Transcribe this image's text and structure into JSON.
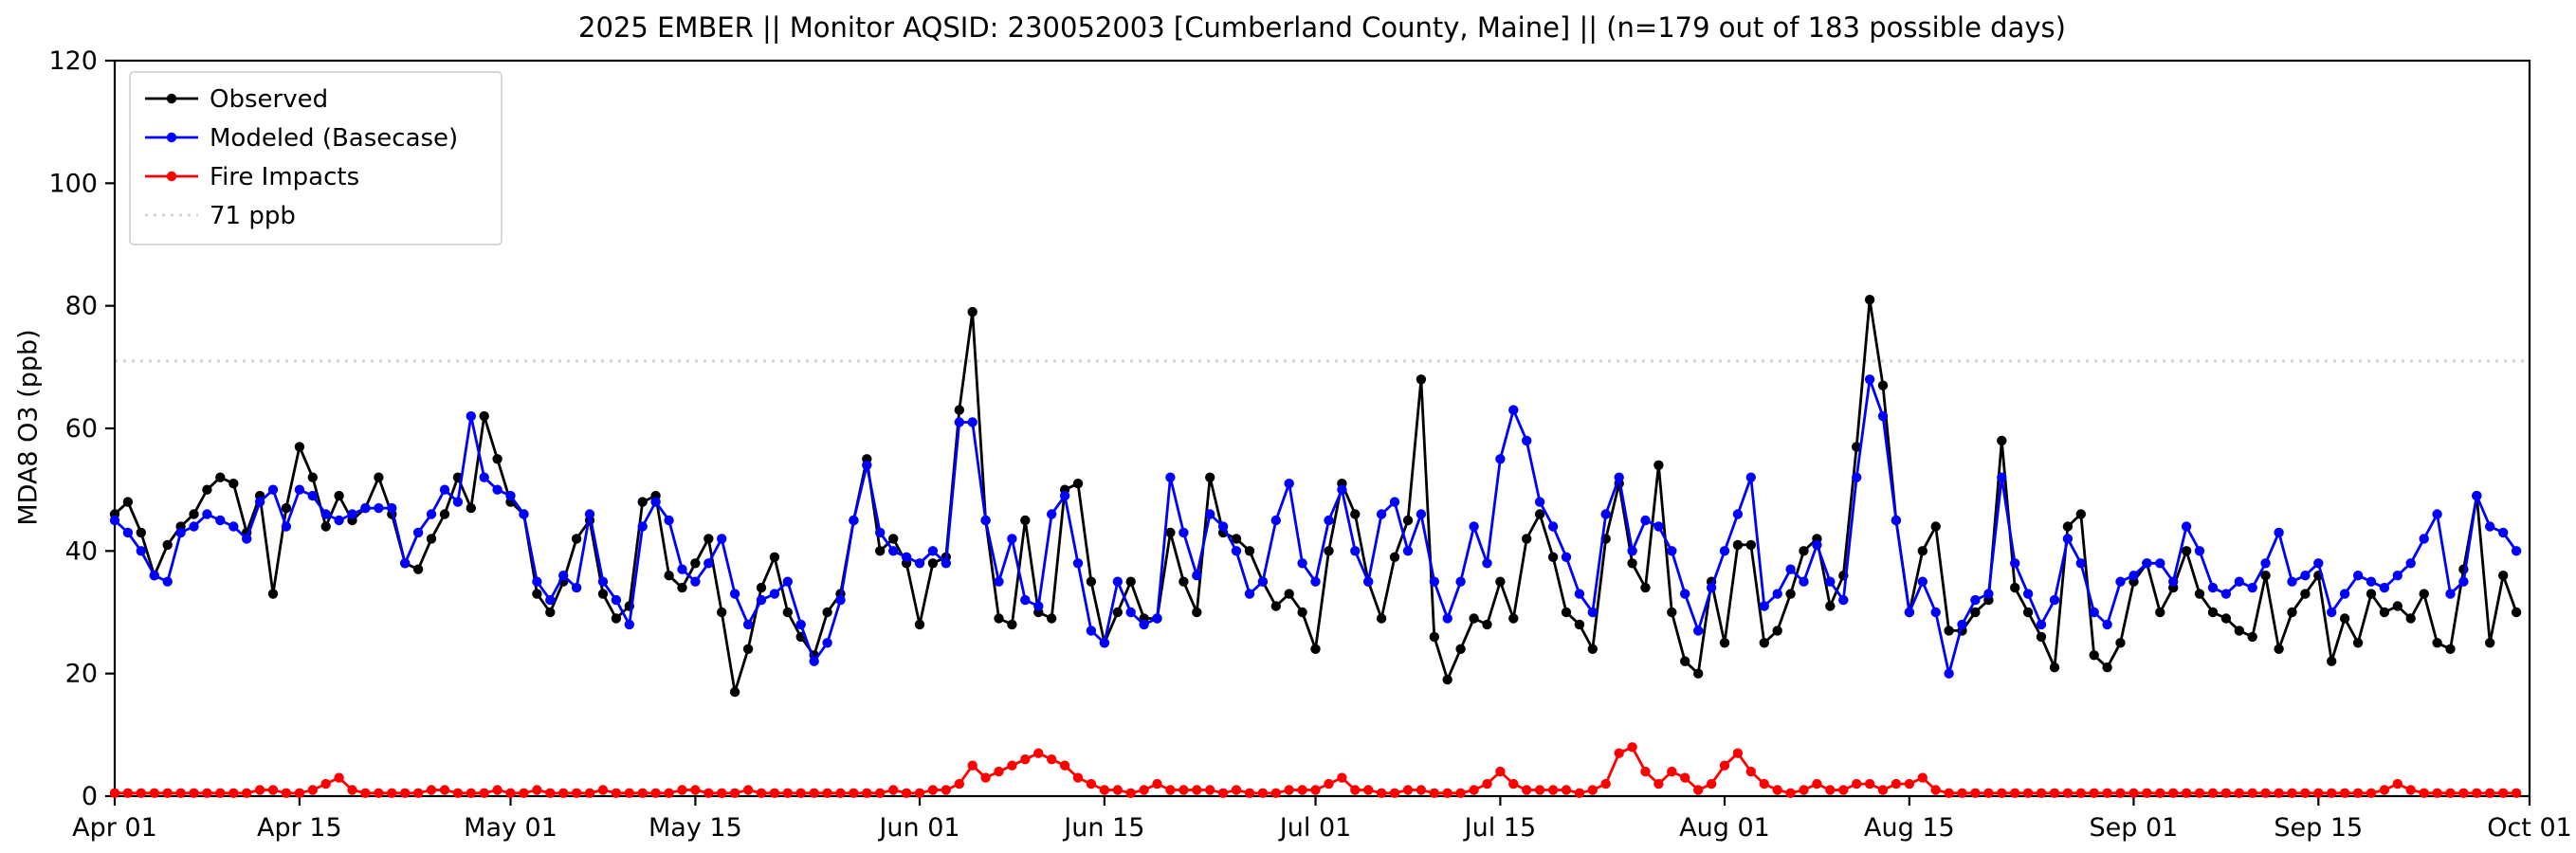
{
  "chart_data": {
    "type": "line",
    "title": "2025 EMBER || Monitor AQSID: 230052003 [Cumberland County, Maine] || (n=179 out of 183 possible days)",
    "xlabel": "",
    "ylabel": "MDA8 O3 (ppb)",
    "ylim": [
      0,
      120
    ],
    "yticks": [
      0,
      20,
      40,
      60,
      80,
      100,
      120
    ],
    "x_range": [
      0,
      183
    ],
    "x_tick_positions": [
      0,
      14,
      30,
      44,
      61,
      75,
      91,
      105,
      122,
      136,
      153,
      167,
      183
    ],
    "x_tick_labels": [
      "Apr 01",
      "Apr 15",
      "May 01",
      "May 15",
      "Jun 01",
      "Jun 15",
      "Jul 01",
      "Jul 15",
      "Aug 01",
      "Aug 15",
      "Sep 01",
      "Sep 15",
      "Oct 01"
    ],
    "grid": false,
    "legend_position": "upper-left",
    "threshold": {
      "label": "71 ppb",
      "value": 71,
      "color": "#d3d3d3",
      "style": "dotted"
    },
    "legend_items": [
      {
        "label": "Observed",
        "color": "#000000",
        "style": "solid",
        "marker": true
      },
      {
        "label": "Modeled (Basecase)",
        "color": "#0000ff",
        "style": "solid",
        "marker": true
      },
      {
        "label": "Fire Impacts",
        "color": "#ff0000",
        "style": "solid",
        "marker": true
      },
      {
        "label": "71 ppb",
        "color": "#d3d3d3",
        "style": "dotted",
        "marker": false
      }
    ],
    "series": [
      {
        "name": "Observed",
        "color": "#000000",
        "values": [
          46,
          48,
          43,
          36,
          41,
          44,
          46,
          50,
          52,
          51,
          43,
          49,
          33,
          47,
          57,
          52,
          44,
          49,
          45,
          47,
          52,
          46,
          38,
          37,
          42,
          46,
          52,
          47,
          62,
          55,
          48,
          46,
          33,
          30,
          35,
          42,
          45,
          33,
          29,
          31,
          48,
          49,
          36,
          34,
          38,
          42,
          30,
          17,
          24,
          34,
          39,
          30,
          26,
          23,
          30,
          33,
          45,
          55,
          40,
          42,
          38,
          28,
          38,
          39,
          63,
          79,
          45,
          29,
          28,
          45,
          30,
          29,
          50,
          51,
          35,
          25,
          30,
          35,
          29,
          29,
          43,
          35,
          30,
          52,
          43,
          42,
          40,
          35,
          31,
          33,
          30,
          24,
          40,
          51,
          46,
          35,
          29,
          39,
          45,
          68,
          26,
          19,
          24,
          29,
          28,
          35,
          29,
          42,
          46,
          39,
          30,
          28,
          24,
          42,
          51,
          38,
          34,
          54,
          30,
          22,
          20,
          35,
          25,
          41,
          41,
          25,
          27,
          33,
          40,
          42,
          31,
          36,
          57,
          81,
          67,
          45,
          30,
          40,
          44,
          27,
          27,
          30,
          32,
          58,
          34,
          30,
          26,
          21,
          44,
          46,
          23,
          21,
          25,
          35,
          38,
          30,
          34,
          40,
          33,
          30,
          29,
          27,
          26,
          36,
          24,
          30,
          33,
          36,
          22,
          29,
          25,
          33,
          30,
          31,
          29,
          33,
          25,
          24,
          37,
          49,
          25,
          36,
          30
        ]
      },
      {
        "name": "Modeled (Basecase)",
        "color": "#0000ff",
        "values": [
          45,
          43,
          40,
          36,
          35,
          43,
          44,
          46,
          45,
          44,
          42,
          48,
          50,
          44,
          50,
          49,
          46,
          45,
          46,
          47,
          47,
          47,
          38,
          43,
          46,
          50,
          48,
          62,
          52,
          50,
          49,
          46,
          35,
          32,
          36,
          34,
          46,
          35,
          32,
          28,
          44,
          48,
          45,
          37,
          35,
          38,
          42,
          33,
          28,
          32,
          33,
          35,
          28,
          22,
          25,
          32,
          45,
          54,
          43,
          40,
          39,
          38,
          40,
          38,
          61,
          61,
          45,
          35,
          42,
          32,
          31,
          46,
          49,
          38,
          27,
          25,
          35,
          30,
          28,
          29,
          52,
          43,
          36,
          46,
          44,
          40,
          33,
          35,
          45,
          51,
          38,
          35,
          45,
          50,
          40,
          35,
          46,
          48,
          40,
          46,
          35,
          29,
          35,
          44,
          38,
          55,
          63,
          58,
          48,
          44,
          39,
          33,
          30,
          46,
          52,
          40,
          45,
          44,
          40,
          33,
          27,
          34,
          40,
          46,
          52,
          31,
          33,
          37,
          35,
          41,
          35,
          32,
          52,
          68,
          62,
          45,
          30,
          35,
          30,
          20,
          28,
          32,
          33,
          52,
          38,
          33,
          28,
          32,
          42,
          38,
          30,
          28,
          35,
          36,
          38,
          38,
          35,
          44,
          40,
          34,
          33,
          35,
          34,
          38,
          43,
          35,
          36,
          38,
          30,
          33,
          36,
          35,
          34,
          36,
          38,
          42,
          46,
          33,
          35,
          49,
          44,
          43,
          40
        ]
      },
      {
        "name": "Fire Impacts",
        "color": "#ff0000",
        "values": [
          0.5,
          0.5,
          0.5,
          0.5,
          0.5,
          0.5,
          0.5,
          0.5,
          0.5,
          0.5,
          0.5,
          1,
          1,
          0.5,
          0.5,
          1,
          2,
          3,
          1,
          0.5,
          0.5,
          0.5,
          0.5,
          0.5,
          1,
          1,
          0.5,
          0.5,
          0.5,
          1,
          0.5,
          0.5,
          1,
          0.5,
          0.5,
          0.5,
          0.5,
          1,
          0.5,
          0.5,
          0.5,
          0.5,
          0.5,
          1,
          1,
          0.5,
          0.5,
          0.5,
          1,
          0.5,
          0.5,
          0.5,
          0.5,
          0.5,
          0.5,
          0.5,
          0.5,
          0.5,
          0.5,
          1,
          0.5,
          0.5,
          1,
          1,
          2,
          5,
          3,
          4,
          5,
          6,
          7,
          6,
          5,
          3,
          2,
          1,
          1,
          0.5,
          1,
          2,
          1,
          1,
          1,
          1,
          0.5,
          1,
          0.5,
          0.5,
          0.5,
          1,
          1,
          1,
          2,
          3,
          1,
          1,
          0.5,
          0.5,
          1,
          1,
          0.5,
          0.5,
          0.5,
          1,
          2,
          4,
          2,
          1,
          1,
          1,
          1,
          0.5,
          1,
          2,
          7,
          8,
          4,
          2,
          4,
          3,
          1,
          2,
          5,
          7,
          4,
          2,
          1,
          0.5,
          1,
          2,
          1,
          1,
          2,
          2,
          1,
          2,
          2,
          3,
          1,
          0.5,
          0.5,
          0.5,
          0.5,
          0.5,
          0.5,
          0.5,
          0.5,
          0.5,
          0.5,
          0.5,
          0.5,
          0.5,
          0.5,
          0.5,
          0.5,
          0.5,
          0.5,
          0.5,
          0.5,
          0.5,
          0.5,
          0.5,
          0.5,
          0.5,
          0.5,
          0.5,
          0.5,
          0.5,
          0.5,
          0.5,
          0.5,
          0.5,
          1,
          2,
          1,
          0.5,
          0.5,
          0.5,
          0.5,
          0.5,
          0.5,
          0.5,
          0.5
        ]
      }
    ]
  }
}
